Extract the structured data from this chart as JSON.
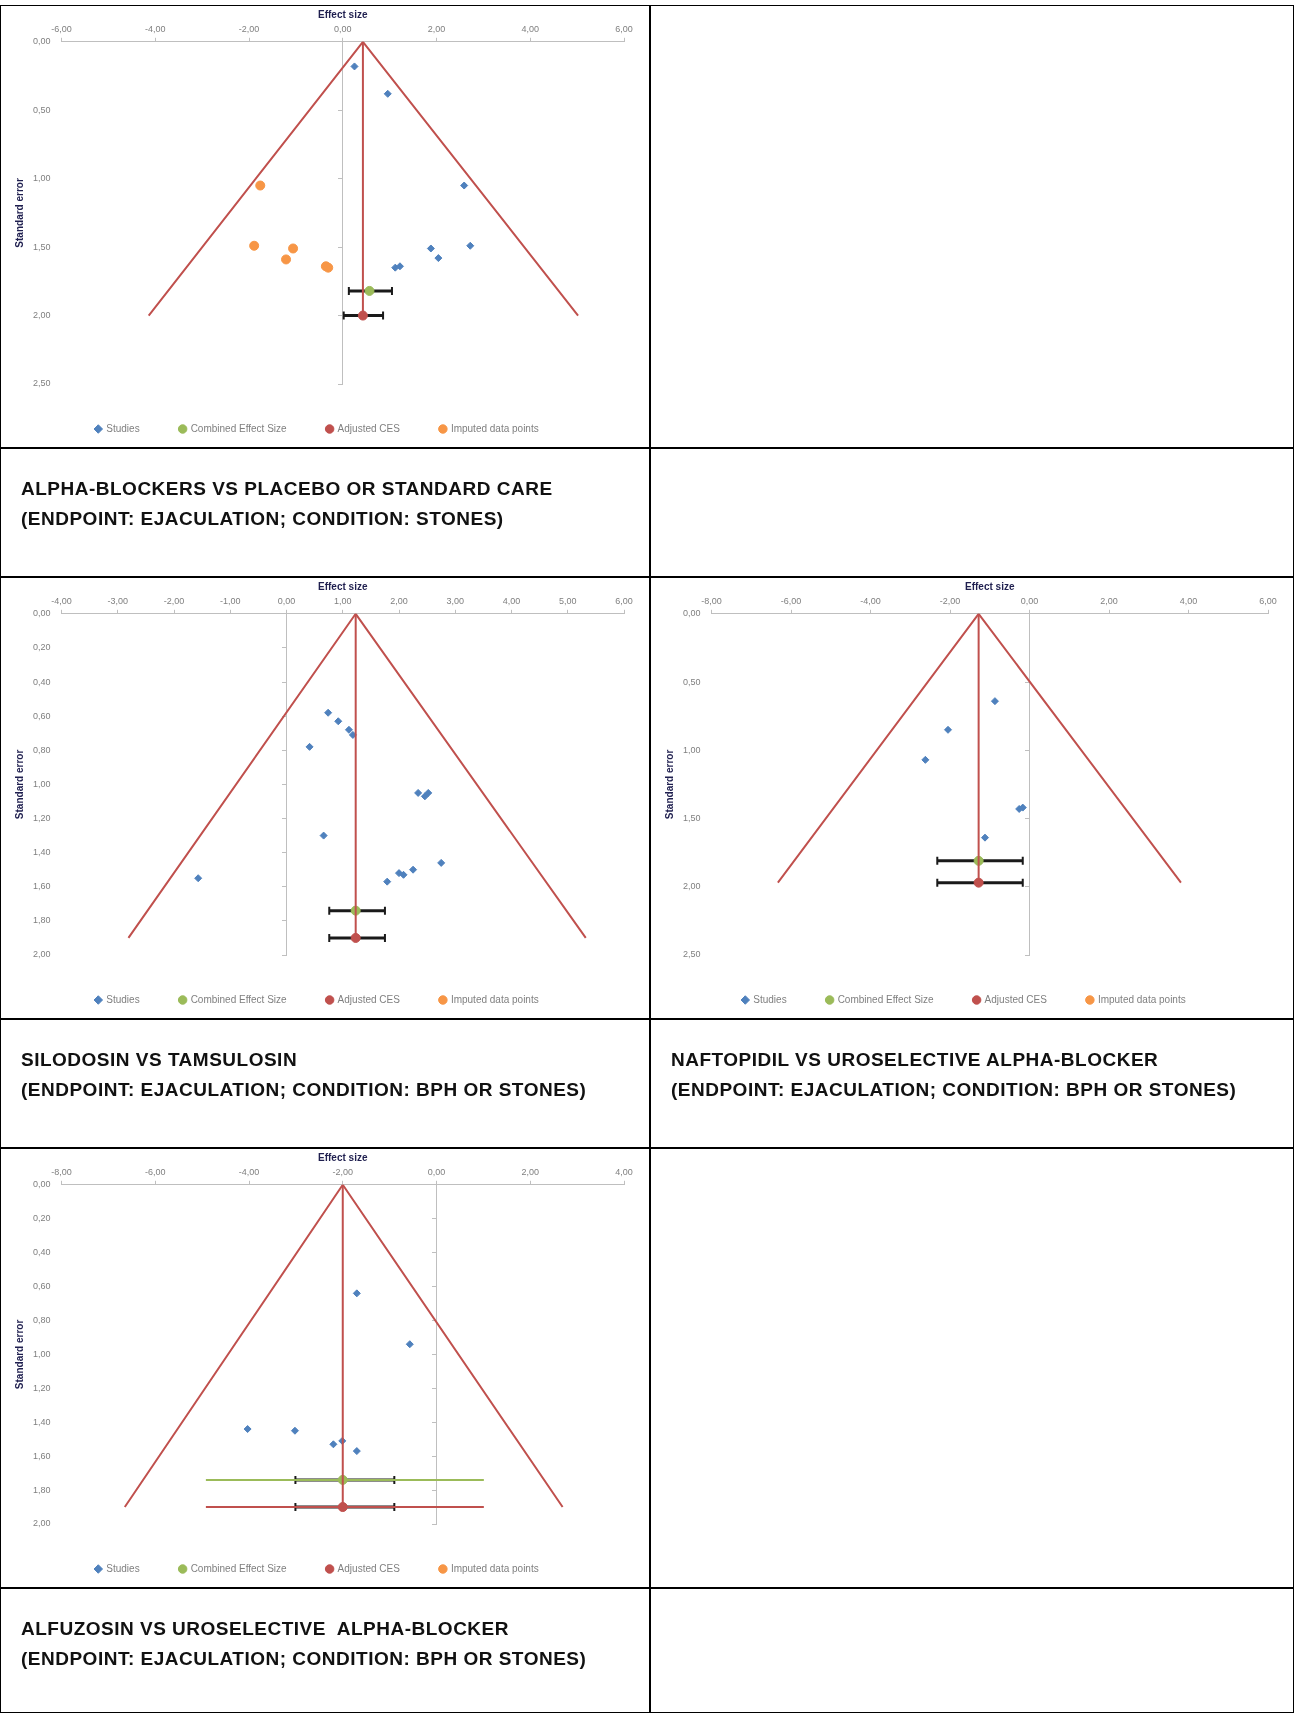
{
  "chart_data": [
    {
      "type": "scatter",
      "title": "ALPHA-BLOCKERS VS PLACEBO OR STANDARD CARE",
      "subtitle": "(ENDPOINT: EJACULATION; CONDITION: STONES)",
      "xlabel": "Effect size",
      "ylabel": "Standard error",
      "legend": "bottom",
      "xlim": [
        -6,
        6
      ],
      "xticks": [
        {
          "value": -6,
          "label": "-6,00"
        },
        {
          "value": -4,
          "label": "-4,00"
        },
        {
          "value": -2,
          "label": "-2,00"
        },
        {
          "value": 0,
          "label": "0,00"
        },
        {
          "value": 2,
          "label": "2,00"
        },
        {
          "value": 4,
          "label": "4,00"
        },
        {
          "value": 6,
          "label": "6,00"
        }
      ],
      "ylim": [
        2.5,
        0
      ],
      "yticks": [
        {
          "value": 0,
          "label": "0,00"
        },
        {
          "value": 0.5,
          "label": "0,50"
        },
        {
          "value": 1,
          "label": "1,00"
        },
        {
          "value": 1.5,
          "label": "1,50"
        },
        {
          "value": 2,
          "label": "2,00"
        },
        {
          "value": 2.5,
          "label": "2,50"
        }
      ],
      "series": [
        {
          "type": "line",
          "color": "#c0504d",
          "marker": "none",
          "x": [
            -4.14,
            0.43,
            5.02
          ],
          "values": [
            2.0,
            0,
            2.0
          ]
        },
        {
          "type": "line",
          "color": "#c0504d",
          "marker": "none",
          "x": [
            0.43,
            0.43
          ],
          "values": [
            0,
            2.0
          ]
        },
        {
          "name": "Studies",
          "color": "#4f81bd",
          "marker": "diamond",
          "x": [
            0.25,
            0.96,
            2.59,
            1.88,
            2.72,
            2.04,
            1.12,
            1.22
          ],
          "values": [
            0.18,
            0.38,
            1.05,
            1.51,
            1.49,
            1.58,
            1.65,
            1.64
          ]
        },
        {
          "name": "Combined Effect Size",
          "color": "#9bbb59",
          "marker": "circle",
          "x": [
            0.57
          ],
          "values": [
            1.82
          ],
          "xerrors": [
            [
              0.13,
              1.05
            ]
          ]
        },
        {
          "name": "Adjusted CES",
          "color": "#c0504d",
          "marker": "circle",
          "x": [
            0.43
          ],
          "values": [
            2.0
          ],
          "xerrors": [
            [
              0.02,
              0.86
            ]
          ]
        },
        {
          "name": "Imputed data points",
          "color": "#f79646",
          "marker": "circle",
          "x": [
            -1.76,
            -1.89,
            -1.06,
            -1.21,
            -0.36,
            -0.31
          ],
          "values": [
            1.05,
            1.49,
            1.51,
            1.59,
            1.64,
            1.65
          ]
        }
      ]
    },
    {
      "type": "scatter",
      "title": "SILODOSIN VS TAMSULOSIN",
      "subtitle": "(ENDPOINT: EJACULATION; CONDITION: BPH OR STONES)",
      "xlabel": "Effect size",
      "ylabel": "Standard error",
      "legend": "bottom",
      "xlim": [
        -4,
        6
      ],
      "xticks": [
        {
          "value": -4,
          "label": "-4,00"
        },
        {
          "value": -3,
          "label": "-3,00"
        },
        {
          "value": -2,
          "label": "-2,00"
        },
        {
          "value": -1,
          "label": "-1,00"
        },
        {
          "value": 0,
          "label": "0,00"
        },
        {
          "value": 1,
          "label": "1,00"
        },
        {
          "value": 2,
          "label": "2,00"
        },
        {
          "value": 3,
          "label": "3,00"
        },
        {
          "value": 4,
          "label": "4,00"
        },
        {
          "value": 5,
          "label": "5,00"
        },
        {
          "value": 6,
          "label": "6,00"
        }
      ],
      "ylim": [
        2,
        0
      ],
      "yticks": [
        {
          "value": 0,
          "label": "0,00"
        },
        {
          "value": 0.2,
          "label": "0,20"
        },
        {
          "value": 0.4,
          "label": "0,40"
        },
        {
          "value": 0.6,
          "label": "0,60"
        },
        {
          "value": 0.8,
          "label": "0,80"
        },
        {
          "value": 1,
          "label": "1,00"
        },
        {
          "value": 1.2,
          "label": "1,20"
        },
        {
          "value": 1.4,
          "label": "1,40"
        },
        {
          "value": 1.6,
          "label": "1,60"
        },
        {
          "value": 1.8,
          "label": "1,80"
        },
        {
          "value": 2,
          "label": "2,00"
        }
      ],
      "series": [
        {
          "type": "line",
          "color": "#c0504d",
          "marker": "none",
          "x": [
            -2.81,
            1.23,
            5.32
          ],
          "values": [
            1.9,
            0,
            1.9
          ]
        },
        {
          "type": "line",
          "color": "#c0504d",
          "marker": "none",
          "x": [
            1.23,
            1.23
          ],
          "values": [
            0,
            1.9
          ]
        },
        {
          "name": "Studies",
          "color": "#4f81bd",
          "marker": "diamond",
          "x": [
            0.74,
            0.92,
            1.11,
            1.18,
            0.41,
            2.34,
            2.46,
            2.52,
            0.66,
            2.75,
            2.25,
            2.0,
            2.08,
            1.79,
            -1.57
          ],
          "values": [
            0.58,
            0.63,
            0.68,
            0.71,
            0.78,
            1.05,
            1.07,
            1.05,
            1.3,
            1.46,
            1.5,
            1.52,
            1.53,
            1.57,
            1.55
          ]
        },
        {
          "name": "Combined Effect Size",
          "color": "#9bbb59",
          "marker": "circle",
          "x": [
            1.23
          ],
          "values": [
            1.74
          ],
          "xerrors": [
            [
              0.76,
              1.75
            ]
          ]
        },
        {
          "name": "Adjusted CES",
          "color": "#c0504d",
          "marker": "circle",
          "x": [
            1.23
          ],
          "values": [
            1.9
          ],
          "xerrors": [
            [
              0.76,
              1.75
            ]
          ]
        },
        {
          "name": "Imputed data points",
          "color": "#f79646",
          "marker": "circle"
        }
      ]
    },
    {
      "type": "scatter",
      "title": "NAFTOPIDIL VS UROSELECTIVE ALPHA-BLOCKER",
      "subtitle": "(ENDPOINT: EJACULATION; CONDITION: BPH OR STONES)",
      "xlabel": "Effect size",
      "ylabel": "Standard error",
      "legend": "bottom",
      "xlim": [
        -8,
        6
      ],
      "xticks": [
        {
          "value": -8,
          "label": "-8,00"
        },
        {
          "value": -6,
          "label": "-6,00"
        },
        {
          "value": -4,
          "label": "-4,00"
        },
        {
          "value": -2,
          "label": "-2,00"
        },
        {
          "value": 0,
          "label": "0,00"
        },
        {
          "value": 2,
          "label": "2,00"
        },
        {
          "value": 4,
          "label": "4,00"
        },
        {
          "value": 6,
          "label": "6,00"
        }
      ],
      "ylim": [
        2.5,
        0
      ],
      "yticks": [
        {
          "value": 0,
          "label": "0,00"
        },
        {
          "value": 0.5,
          "label": "0,50"
        },
        {
          "value": 1,
          "label": "1,00"
        },
        {
          "value": 1.5,
          "label": "1,50"
        },
        {
          "value": 2,
          "label": "2,00"
        },
        {
          "value": 2.5,
          "label": "2,50"
        }
      ],
      "series": [
        {
          "type": "line",
          "color": "#c0504d",
          "marker": "none",
          "x": [
            -6.33,
            -1.28,
            3.81
          ],
          "values": [
            1.97,
            0,
            1.97
          ]
        },
        {
          "type": "line",
          "color": "#c0504d",
          "marker": "none",
          "x": [
            -1.28,
            -1.28
          ],
          "values": [
            0,
            1.97
          ]
        },
        {
          "name": "Studies",
          "color": "#4f81bd",
          "marker": "diamond",
          "x": [
            -0.87,
            -2.05,
            -2.62,
            -0.26,
            -0.17,
            -1.12
          ],
          "values": [
            0.64,
            0.85,
            1.07,
            1.43,
            1.42,
            1.64
          ]
        },
        {
          "name": "Combined Effect Size",
          "color": "#9bbb59",
          "marker": "circle",
          "x": [
            -1.28
          ],
          "values": [
            1.81
          ],
          "xerrors": [
            [
              -2.32,
              -0.17
            ]
          ]
        },
        {
          "name": "Adjusted CES",
          "color": "#c0504d",
          "marker": "circle",
          "x": [
            -1.28
          ],
          "values": [
            1.97
          ],
          "xerrors": [
            [
              -2.32,
              -0.17
            ]
          ]
        },
        {
          "name": "Imputed data points",
          "color": "#f79646",
          "marker": "circle"
        }
      ]
    },
    {
      "type": "scatter",
      "title": "ALFUZOSIN VS UROSELECTIVE  ALPHA-BLOCKER",
      "subtitle": "(ENDPOINT: EJACULATION; CONDITION: BPH OR STONES)",
      "xlabel": "Effect size",
      "ylabel": "Standard error",
      "legend": "bottom",
      "xlim": [
        -8,
        4
      ],
      "xticks": [
        {
          "value": -8,
          "label": "-8,00"
        },
        {
          "value": -6,
          "label": "-6,00"
        },
        {
          "value": -4,
          "label": "-4,00"
        },
        {
          "value": -2,
          "label": "-2,00"
        },
        {
          "value": 0,
          "label": "0,00"
        },
        {
          "value": 2,
          "label": "2,00"
        },
        {
          "value": 4,
          "label": "4,00"
        }
      ],
      "ylim": [
        2,
        0
      ],
      "yticks": [
        {
          "value": 0,
          "label": "0,00"
        },
        {
          "value": 0.2,
          "label": "0,20"
        },
        {
          "value": 0.4,
          "label": "0,40"
        },
        {
          "value": 0.6,
          "label": "0,60"
        },
        {
          "value": 0.8,
          "label": "0,80"
        },
        {
          "value": 1,
          "label": "1,00"
        },
        {
          "value": 1.2,
          "label": "1,20"
        },
        {
          "value": 1.4,
          "label": "1,40"
        },
        {
          "value": 1.6,
          "label": "1,60"
        },
        {
          "value": 1.8,
          "label": "1,80"
        },
        {
          "value": 2,
          "label": "2,00"
        }
      ],
      "series": [
        {
          "type": "line",
          "color": "#c0504d",
          "marker": "none",
          "x": [
            -6.65,
            -2.0,
            2.69
          ],
          "values": [
            1.9,
            0,
            1.9
          ]
        },
        {
          "type": "line",
          "color": "#c0504d",
          "marker": "none",
          "x": [
            -2.0,
            -2.0
          ],
          "values": [
            0,
            1.9
          ]
        },
        {
          "type": "line",
          "color": "#9bbb59",
          "marker": "none",
          "x": [
            -4.92,
            1.01
          ],
          "values": [
            1.74,
            1.74
          ]
        },
        {
          "type": "line",
          "color": "#c0504d",
          "marker": "none",
          "x": [
            -4.92,
            1.01
          ],
          "values": [
            1.9,
            1.9
          ]
        },
        {
          "name": "Studies",
          "color": "#4f81bd",
          "marker": "diamond",
          "x": [
            -1.7,
            -0.57,
            -4.03,
            -3.02,
            -2.2,
            -2.01,
            -1.7
          ],
          "values": [
            0.64,
            0.94,
            1.44,
            1.45,
            1.53,
            1.51,
            1.57
          ]
        },
        {
          "name": "Combined Effect Size",
          "color": "#9bbb59",
          "marker": "circle",
          "x": [
            -2.0
          ],
          "values": [
            1.74
          ],
          "xerrors": [
            [
              -3.01,
              -0.9
            ]
          ]
        },
        {
          "name": "Adjusted CES",
          "color": "#c0504d",
          "marker": "circle",
          "x": [
            -2.0
          ],
          "values": [
            1.9
          ],
          "xerrors": [
            [
              -3.01,
              -0.9
            ]
          ]
        },
        {
          "name": "Imputed data points",
          "color": "#f79646",
          "marker": "circle"
        }
      ]
    }
  ]
}
